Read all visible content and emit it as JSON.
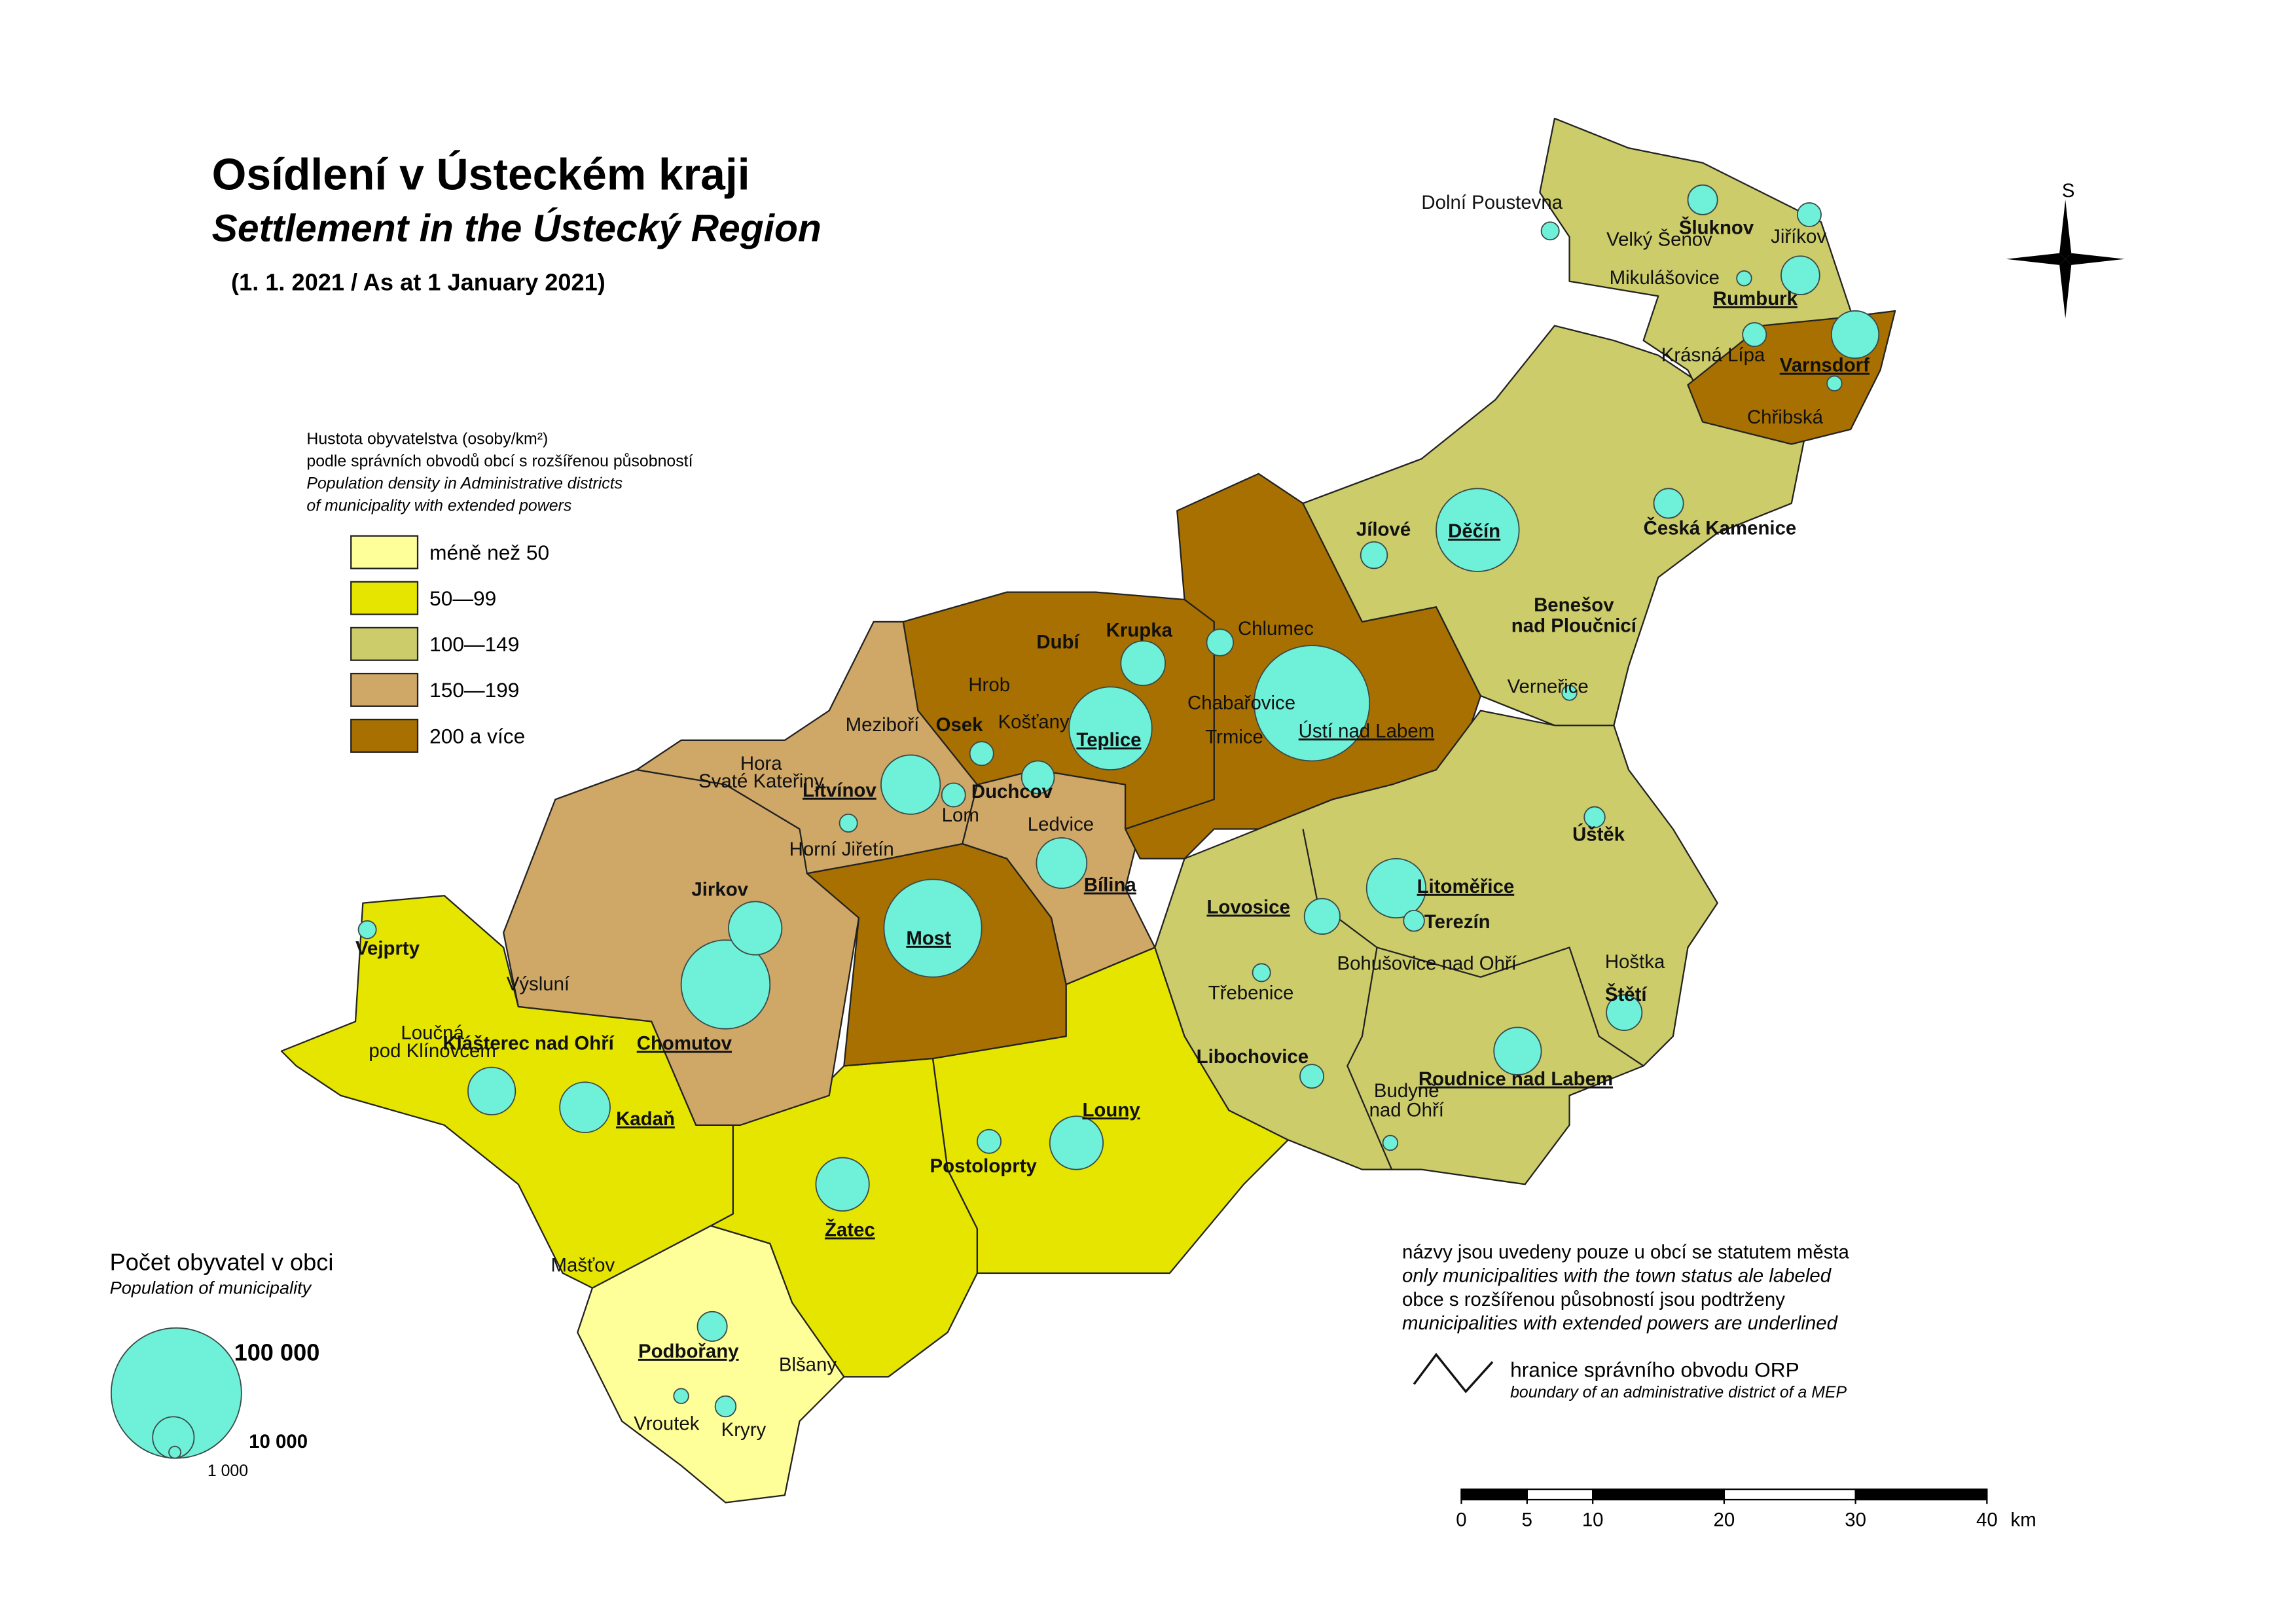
{
  "header": {
    "title": "Osídlení v Ústeckém kraji",
    "subtitle": "Settlement in the Ústecký Region",
    "date": "(1. 1. 2021 / As at 1 January 2021)"
  },
  "density_legend": {
    "heading": [
      "Hustota obyvatelstva (osoby/km²)",
      "podle správních obvodů obcí s rozšířenou působností",
      "Population density in Administrative districts",
      "of municipality with extended powers"
    ],
    "classes": [
      {
        "label": "méně než 50",
        "color": "#ffff99"
      },
      {
        "label": "50—99",
        "color": "#e5e500"
      },
      {
        "label": "100—149",
        "color": "#cccc6a"
      },
      {
        "label": "150—199",
        "color": "#cfa766"
      },
      {
        "label": "200 a více",
        "color": "#a87000"
      }
    ]
  },
  "population_legend": {
    "title": "Počet obyvatel v obci",
    "subtitle": "Population of municipality",
    "labels": [
      "100 000",
      "10 000",
      "1 000"
    ]
  },
  "notes": [
    "názvy jsou uvedeny pouze u obcí se statutem města",
    "only municipalities with the town status ale labeled",
    "obce s rozšířenou působností jsou podtrženy",
    "municipalities with extended powers are underlined"
  ],
  "boundary_legend": {
    "label": "hranice správního obvodu ORP",
    "sublabel": "boundary of an administrative district of a MEP"
  },
  "scale_bar": {
    "ticks": [
      0,
      5,
      10,
      20,
      30,
      40
    ],
    "unit": "km"
  },
  "compass": "S",
  "places": [
    {
      "lines": [
        "Dolní Poustevna"
      ],
      "extended_powers": false
    },
    {
      "lines": [
        "Šluknov"
      ],
      "extended_powers": false
    },
    {
      "lines": [
        "Jiříkov"
      ],
      "extended_powers": false
    },
    {
      "lines": [
        "Velký Šenov"
      ],
      "extended_powers": false
    },
    {
      "lines": [
        "Mikulášovice"
      ],
      "extended_powers": false
    },
    {
      "lines": [
        "Rumburk"
      ],
      "extended_powers": true
    },
    {
      "lines": [
        "Krásná Lípa"
      ],
      "extended_powers": false
    },
    {
      "lines": [
        "Varnsdorf"
      ],
      "extended_powers": true
    },
    {
      "lines": [
        "Chřibská"
      ],
      "extended_powers": false
    },
    {
      "lines": [
        "Jílové"
      ],
      "extended_powers": false
    },
    {
      "lines": [
        "Děčín"
      ],
      "extended_powers": true
    },
    {
      "lines": [
        "Česká Kamenice"
      ],
      "extended_powers": false
    },
    {
      "lines": [
        "Benešov",
        "nad Ploučnicí"
      ],
      "extended_powers": false
    },
    {
      "lines": [
        "Verneřice"
      ],
      "extended_powers": false
    },
    {
      "lines": [
        "Chlumec"
      ],
      "extended_powers": false
    },
    {
      "lines": [
        "Krupka"
      ],
      "extended_powers": false
    },
    {
      "lines": [
        "Dubí"
      ],
      "extended_powers": false
    },
    {
      "lines": [
        "Hrob"
      ],
      "extended_powers": false
    },
    {
      "lines": [
        "Košťany"
      ],
      "extended_powers": false
    },
    {
      "lines": [
        "Teplice"
      ],
      "extended_powers": true
    },
    {
      "lines": [
        "Chabařovice"
      ],
      "extended_powers": false
    },
    {
      "lines": [
        "Trmice"
      ],
      "extended_powers": false
    },
    {
      "lines": [
        "Ústí nad Labem"
      ],
      "extended_powers": true
    },
    {
      "lines": [
        "Meziboří"
      ],
      "extended_powers": false
    },
    {
      "lines": [
        "Osek"
      ],
      "extended_powers": false
    },
    {
      "lines": [
        "Litvínov"
      ],
      "extended_powers": true
    },
    {
      "lines": [
        "Duchcov"
      ],
      "extended_powers": false
    },
    {
      "lines": [
        "Lom"
      ],
      "extended_powers": false
    },
    {
      "lines": [
        "Hora",
        "Svaté Kateřiny"
      ],
      "extended_powers": false
    },
    {
      "lines": [
        "Horní Jiřetín"
      ],
      "extended_powers": false
    },
    {
      "lines": [
        "Ledvice"
      ],
      "extended_powers": false
    },
    {
      "lines": [
        "Bílina"
      ],
      "extended_powers": true
    },
    {
      "lines": [
        "Most"
      ],
      "extended_powers": true
    },
    {
      "lines": [
        "Jirkov"
      ],
      "extended_powers": false
    },
    {
      "lines": [
        "Úštěk"
      ],
      "extended_powers": false
    },
    {
      "lines": [
        "Lovosice"
      ],
      "extended_powers": true
    },
    {
      "lines": [
        "Litoměřice"
      ],
      "extended_powers": true
    },
    {
      "lines": [
        "Terezín"
      ],
      "extended_powers": false
    },
    {
      "lines": [
        "Bohušovice nad Ohří"
      ],
      "extended_powers": false
    },
    {
      "lines": [
        "Hoštka"
      ],
      "extended_powers": false
    },
    {
      "lines": [
        "Štětí"
      ],
      "extended_powers": false
    },
    {
      "lines": [
        "Třebenice"
      ],
      "extended_powers": false
    },
    {
      "lines": [
        "Libochovice"
      ],
      "extended_powers": false
    },
    {
      "lines": [
        "Roudnice nad Labem"
      ],
      "extended_powers": true
    },
    {
      "lines": [
        "Budyně",
        "nad Ohří"
      ],
      "extended_powers": false
    },
    {
      "lines": [
        "Vejprty"
      ],
      "extended_powers": false
    },
    {
      "lines": [
        "Výsluní"
      ],
      "extended_powers": false
    },
    {
      "lines": [
        "Chomutov"
      ],
      "extended_powers": true
    },
    {
      "lines": [
        "Loučná",
        "pod Klínovcem"
      ],
      "extended_powers": false
    },
    {
      "lines": [
        "Klášterec nad Ohří"
      ],
      "extended_powers": false
    },
    {
      "lines": [
        "Kadaň"
      ],
      "extended_powers": true
    },
    {
      "lines": [
        "Louny"
      ],
      "extended_powers": true
    },
    {
      "lines": [
        "Postoloprty"
      ],
      "extended_powers": false
    },
    {
      "lines": [
        "Žatec"
      ],
      "extended_powers": true
    },
    {
      "lines": [
        "Mašťov"
      ],
      "extended_powers": false
    },
    {
      "lines": [
        "Podbořany"
      ],
      "extended_powers": true
    },
    {
      "lines": [
        "Blšany"
      ],
      "extended_powers": false
    },
    {
      "lines": [
        "Vroutek"
      ],
      "extended_powers": false
    },
    {
      "lines": [
        "Kryry"
      ],
      "extended_powers": false
    }
  ]
}
